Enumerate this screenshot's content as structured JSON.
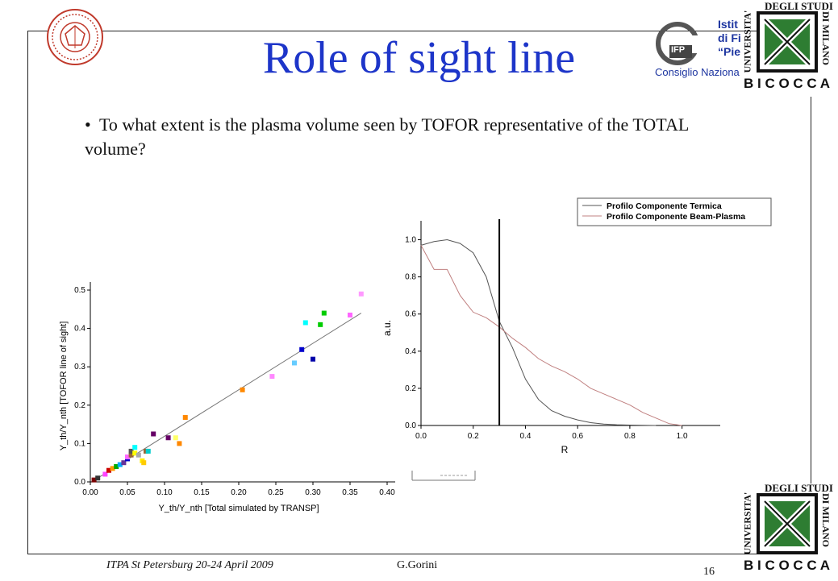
{
  "slide": {
    "title": "Role of sight line",
    "bullet": "To what extent is the plasma volume seen by TOFOR representative of the TOTAL volume?",
    "footer_left": "ITPA St Petersburg 20-24 April 2009",
    "footer_author": "G.Gorini",
    "page_number": "16"
  },
  "logos": {
    "cnr_text_line1": "Istit",
    "cnr_text_line2": "di Fi",
    "cnr_text_line3": "“Pie",
    "cnr_badge": "IFP",
    "cnr_caption": "Consiglio Naziona",
    "unimib_left": "UNIVERSITA'",
    "unimib_top": "DEGLI STUDI",
    "unimib_right": "DI MILANO",
    "unimib_bottom": "B I C O C C A",
    "seal_icon": "university-seal-icon",
    "unimib_icon": "x-emblem-icon"
  },
  "chart_data": [
    {
      "type": "scatter",
      "title": "",
      "xlabel": "Y_th/Y_nth [Total simulated by TRANSP]",
      "ylabel": "Y_th/Y_nth [TOFOR line of sight]",
      "xlim": [
        0.0,
        0.4
      ],
      "ylim": [
        0.0,
        0.5
      ],
      "x_ticks": [
        "0.00",
        "0.05",
        "0.10",
        "0.15",
        "0.20",
        "0.25",
        "0.30",
        "0.35",
        "0.40"
      ],
      "y_ticks": [
        "0.0",
        "0.1",
        "0.2",
        "0.3",
        "0.4",
        "0.5"
      ],
      "fit_line": {
        "x": [
          0.01,
          0.365
        ],
        "y": [
          0.01,
          0.44
        ]
      },
      "points": [
        {
          "x": 0.005,
          "y": 0.005,
          "color": "#7a0000"
        },
        {
          "x": 0.01,
          "y": 0.01,
          "color": "#333333"
        },
        {
          "x": 0.02,
          "y": 0.02,
          "color": "#ff44ff"
        },
        {
          "x": 0.025,
          "y": 0.03,
          "color": "#cc0000"
        },
        {
          "x": 0.03,
          "y": 0.035,
          "color": "#ff9900"
        },
        {
          "x": 0.035,
          "y": 0.04,
          "color": "#00aa00"
        },
        {
          "x": 0.04,
          "y": 0.045,
          "color": "#00aaff"
        },
        {
          "x": 0.045,
          "y": 0.05,
          "color": "#663399"
        },
        {
          "x": 0.05,
          "y": 0.06,
          "color": "#0000cc"
        },
        {
          "x": 0.05,
          "y": 0.065,
          "color": "#ff66ff"
        },
        {
          "x": 0.055,
          "y": 0.07,
          "color": "#996633"
        },
        {
          "x": 0.055,
          "y": 0.08,
          "color": "#555555"
        },
        {
          "x": 0.06,
          "y": 0.075,
          "color": "#ffff00"
        },
        {
          "x": 0.06,
          "y": 0.09,
          "color": "#00ffff"
        },
        {
          "x": 0.065,
          "y": 0.07,
          "color": "#aaaaaa"
        },
        {
          "x": 0.07,
          "y": 0.055,
          "color": "#ffee00"
        },
        {
          "x": 0.072,
          "y": 0.05,
          "color": "#ffcc00"
        },
        {
          "x": 0.075,
          "y": 0.08,
          "color": "#996633"
        },
        {
          "x": 0.078,
          "y": 0.08,
          "color": "#00cccc"
        },
        {
          "x": 0.085,
          "y": 0.125,
          "color": "#660066"
        },
        {
          "x": 0.105,
          "y": 0.115,
          "color": "#660066"
        },
        {
          "x": 0.115,
          "y": 0.115,
          "color": "#ffff66"
        },
        {
          "x": 0.12,
          "y": 0.1,
          "color": "#ff8800"
        },
        {
          "x": 0.128,
          "y": 0.168,
          "color": "#ff8800"
        },
        {
          "x": 0.205,
          "y": 0.24,
          "color": "#ff8800"
        },
        {
          "x": 0.245,
          "y": 0.275,
          "color": "#ff88ff"
        },
        {
          "x": 0.275,
          "y": 0.31,
          "color": "#66ccff"
        },
        {
          "x": 0.285,
          "y": 0.345,
          "color": "#0000cc"
        },
        {
          "x": 0.29,
          "y": 0.415,
          "color": "#00ffff"
        },
        {
          "x": 0.3,
          "y": 0.32,
          "color": "#0000aa"
        },
        {
          "x": 0.31,
          "y": 0.41,
          "color": "#00cc00"
        },
        {
          "x": 0.315,
          "y": 0.44,
          "color": "#00cc00"
        },
        {
          "x": 0.35,
          "y": 0.435,
          "color": "#ff66ff"
        },
        {
          "x": 0.365,
          "y": 0.49,
          "color": "#ff99ff"
        }
      ]
    },
    {
      "type": "line",
      "title": "",
      "xlabel": "R",
      "ylabel": "a.u.",
      "xlim": [
        0.0,
        1.1
      ],
      "ylim": [
        0.0,
        1.05
      ],
      "x_ticks": [
        "0.0",
        "0.2",
        "0.4",
        "0.6",
        "0.8",
        "1.0"
      ],
      "y_ticks": [
        "0.0",
        "0.2",
        "0.4",
        "0.6",
        "0.8",
        "1.0"
      ],
      "vline_x": 0.3,
      "legend_position": "top-right",
      "series": [
        {
          "name": "Profilo Componente Termica",
          "color": "#555555",
          "x": [
            0.0,
            0.05,
            0.1,
            0.15,
            0.2,
            0.25,
            0.3,
            0.35,
            0.4,
            0.45,
            0.5,
            0.55,
            0.6,
            0.65,
            0.7,
            0.75,
            0.8,
            0.85,
            0.9
          ],
          "y": [
            0.97,
            0.99,
            1.0,
            0.98,
            0.93,
            0.8,
            0.56,
            0.42,
            0.25,
            0.14,
            0.08,
            0.05,
            0.03,
            0.015,
            0.008,
            0.004,
            0.002,
            0.001,
            0.0
          ]
        },
        {
          "name": "Profilo Componente Beam-Plasma",
          "color": "#c08080",
          "x": [
            0.0,
            0.05,
            0.1,
            0.15,
            0.2,
            0.25,
            0.3,
            0.35,
            0.4,
            0.45,
            0.5,
            0.55,
            0.6,
            0.65,
            0.7,
            0.75,
            0.8,
            0.85,
            0.9,
            0.95,
            1.0
          ],
          "y": [
            0.97,
            0.84,
            0.84,
            0.7,
            0.61,
            0.58,
            0.53,
            0.47,
            0.42,
            0.36,
            0.32,
            0.29,
            0.25,
            0.2,
            0.17,
            0.14,
            0.11,
            0.07,
            0.04,
            0.01,
            0.0
          ]
        }
      ]
    }
  ]
}
